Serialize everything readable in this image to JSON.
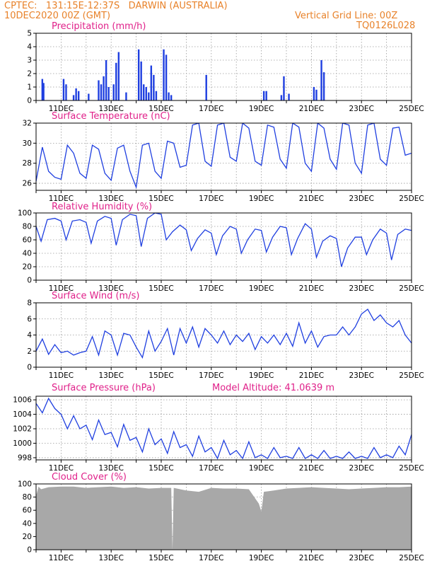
{
  "header": {
    "line1": "CPTEC:   131:15E-12:37S   DARWIN (AUSTRALIA)",
    "line2_left": "10DEC2020 00Z (GMT)",
    "line2_right": "Vertical Grid Line: 00Z",
    "line3_right": "TQ0126L028",
    "model_altitude": "Model Altitude: 41.0639 m"
  },
  "x_tick_labels": [
    "11DEC",
    "13DEC",
    "15DEC",
    "17DEC",
    "19DEC",
    "21DEC",
    "23DEC",
    "25DEC"
  ],
  "colors": {
    "line": "#1f3fe0",
    "bar": "#1f3fe0",
    "cloud": "#a8a8a8",
    "title": "#e0218a",
    "header": "#e8822a"
  },
  "chart_data": [
    {
      "type": "bar",
      "title": "Precipitation (mm/h)",
      "x_unit": "days since 10DEC2020 00Z",
      "ylim": [
        0,
        5
      ],
      "yticks": [
        0,
        1,
        2,
        3,
        4,
        5
      ],
      "grid": true,
      "x": [
        0.25,
        0.3,
        1.1,
        1.2,
        1.5,
        1.6,
        1.7,
        2.1,
        2.5,
        2.6,
        2.7,
        2.8,
        2.9,
        3.1,
        3.2,
        3.3,
        3.6,
        4.1,
        4.2,
        4.3,
        4.4,
        4.5,
        4.6,
        4.7,
        4.8,
        5.1,
        5.2,
        5.3,
        5.4,
        6.8,
        9.1,
        9.2,
        9.8,
        9.9,
        10.1,
        11.1,
        11.2,
        11.4,
        11.5
      ],
      "values": [
        1.6,
        1.3,
        1.6,
        1.2,
        0.4,
        0.9,
        0.7,
        0.5,
        1.5,
        1.2,
        1.8,
        3.0,
        1.0,
        1.2,
        2.8,
        3.6,
        0.6,
        3.8,
        2.9,
        1.2,
        1.0,
        0.6,
        2.6,
        1.9,
        0.7,
        3.8,
        3.4,
        0.6,
        0.4,
        1.9,
        0.7,
        0.7,
        0.4,
        1.8,
        0.5,
        1.0,
        0.8,
        3.0,
        2.1
      ]
    },
    {
      "type": "line",
      "title": "Surface Temperature (nC)",
      "ylim": [
        25.3,
        32
      ],
      "yticks": [
        26,
        28,
        30,
        32
      ],
      "grid": true,
      "x": [
        0,
        0.25,
        0.5,
        0.75,
        1,
        1.25,
        1.5,
        1.75,
        2,
        2.25,
        2.5,
        2.75,
        3,
        3.25,
        3.5,
        3.75,
        4,
        4.25,
        4.5,
        4.75,
        5,
        5.25,
        5.5,
        5.75,
        6,
        6.25,
        6.5,
        6.75,
        7,
        7.25,
        7.5,
        7.75,
        8,
        8.25,
        8.5,
        8.75,
        9,
        9.25,
        9.5,
        9.75,
        10,
        10.25,
        10.5,
        10.75,
        11,
        11.25,
        11.5,
        11.75,
        12,
        12.25,
        12.5,
        12.75,
        13,
        13.25,
        13.5,
        13.75,
        14,
        14.25,
        14.5,
        14.75,
        15
      ],
      "values": [
        26.2,
        29.6,
        27.2,
        26.6,
        26.4,
        29.8,
        29.0,
        27.0,
        26.5,
        29.8,
        29.4,
        27.0,
        26.3,
        29.5,
        29.8,
        27.2,
        25.6,
        29.8,
        30.0,
        27.2,
        26.5,
        30.2,
        30.0,
        27.6,
        27.8,
        31.8,
        32.0,
        28.2,
        27.7,
        31.8,
        32.0,
        28.6,
        28.2,
        32.0,
        31.5,
        28.2,
        27.8,
        31.8,
        31.6,
        28.4,
        27.5,
        32.0,
        31.6,
        28.0,
        27.2,
        32.0,
        31.5,
        28.4,
        27.4,
        32.0,
        31.8,
        28.0,
        27.0,
        31.8,
        32.0,
        28.4,
        27.8,
        31.5,
        31.6,
        28.8,
        29.0
      ]
    },
    {
      "type": "line",
      "title": "Relative Humidity (%)",
      "ylim": [
        0,
        100
      ],
      "yticks": [
        0,
        20,
        40,
        60,
        80,
        100
      ],
      "grid": true,
      "x": [
        0,
        0.2,
        0.45,
        0.75,
        1,
        1.2,
        1.45,
        1.75,
        2,
        2.2,
        2.45,
        2.75,
        3,
        3.2,
        3.45,
        3.75,
        4,
        4.2,
        4.45,
        4.75,
        5,
        5.2,
        5.45,
        5.75,
        6,
        6.2,
        6.45,
        6.75,
        7,
        7.2,
        7.45,
        7.75,
        8,
        8.2,
        8.45,
        8.75,
        9,
        9.2,
        9.45,
        9.75,
        10,
        10.2,
        10.45,
        10.75,
        11,
        11.2,
        11.45,
        11.75,
        12,
        12.2,
        12.45,
        12.75,
        13,
        13.2,
        13.45,
        13.75,
        14,
        14.2,
        14.45,
        14.75,
        15
      ],
      "values": [
        80,
        58,
        90,
        92,
        88,
        60,
        88,
        90,
        86,
        55,
        88,
        95,
        92,
        52,
        90,
        98,
        96,
        50,
        92,
        100,
        98,
        60,
        72,
        82,
        75,
        44,
        62,
        75,
        70,
        38,
        66,
        80,
        76,
        40,
        60,
        76,
        74,
        42,
        64,
        80,
        78,
        38,
        62,
        84,
        76,
        34,
        58,
        66,
        62,
        20,
        48,
        64,
        64,
        38,
        60,
        76,
        70,
        30,
        68,
        76,
        74
      ]
    },
    {
      "type": "line",
      "title": "Surface Wind (m/s)",
      "ylim": [
        0,
        8
      ],
      "yticks": [
        0,
        2,
        4,
        6,
        8
      ],
      "grid": true,
      "x": [
        0,
        0.25,
        0.5,
        0.75,
        1,
        1.25,
        1.5,
        1.75,
        2,
        2.25,
        2.5,
        2.75,
        3,
        3.25,
        3.5,
        3.75,
        4,
        4.25,
        4.5,
        4.75,
        5,
        5.25,
        5.5,
        5.75,
        6,
        6.25,
        6.5,
        6.75,
        7,
        7.25,
        7.5,
        7.75,
        8,
        8.25,
        8.5,
        8.75,
        9,
        9.25,
        9.5,
        9.75,
        10,
        10.25,
        10.5,
        10.75,
        11,
        11.25,
        11.5,
        11.75,
        12,
        12.25,
        12.5,
        12.75,
        13,
        13.25,
        13.5,
        13.75,
        14,
        14.25,
        14.5,
        14.75,
        15
      ],
      "values": [
        2.0,
        3.5,
        1.6,
        2.8,
        1.8,
        2.0,
        1.5,
        1.8,
        2.0,
        3.8,
        1.5,
        4.5,
        4.0,
        1.5,
        4.2,
        4.0,
        2.5,
        1.2,
        4.5,
        2.0,
        3.2,
        4.8,
        1.5,
        4.8,
        3.0,
        5.0,
        2.5,
        4.8,
        4.0,
        3.0,
        4.5,
        2.8,
        4.0,
        3.2,
        4.2,
        2.2,
        3.8,
        3.0,
        4.0,
        2.8,
        4.2,
        2.6,
        5.5,
        3.0,
        4.5,
        2.5,
        3.8,
        4.0,
        4.0,
        5.0,
        4.0,
        5.0,
        6.6,
        7.2,
        5.8,
        6.5,
        5.5,
        5.0,
        5.8,
        4.0,
        3.0
      ]
    },
    {
      "type": "line",
      "title": "Surface Pressure (hPa)",
      "ylim": [
        997.7,
        1006.5
      ],
      "yticks": [
        998,
        1000,
        1002,
        1004,
        1006
      ],
      "grid": true,
      "x": [
        0,
        0.25,
        0.5,
        0.75,
        1,
        1.25,
        1.5,
        1.75,
        2,
        2.25,
        2.5,
        2.75,
        3,
        3.25,
        3.5,
        3.75,
        4,
        4.25,
        4.5,
        4.75,
        5,
        5.25,
        5.5,
        5.75,
        6,
        6.25,
        6.5,
        6.75,
        7,
        7.25,
        7.5,
        7.75,
        8,
        8.25,
        8.5,
        8.75,
        9,
        9.25,
        9.5,
        9.75,
        10,
        10.25,
        10.5,
        10.75,
        11,
        11.25,
        11.5,
        11.75,
        12,
        12.25,
        12.5,
        12.75,
        13,
        13.25,
        13.5,
        13.75,
        14,
        14.25,
        14.5,
        14.75,
        15
      ],
      "values": [
        1005.5,
        1004.2,
        1006.2,
        1004.8,
        1004.0,
        1002.0,
        1003.8,
        1002.0,
        1002.5,
        1000.5,
        1003.2,
        1001.2,
        1001.5,
        999.5,
        1002.6,
        1000.4,
        1000.8,
        998.8,
        1002.0,
        999.8,
        1000.6,
        998.6,
        1001.6,
        999.4,
        999.8,
        998.2,
        1001.0,
        998.8,
        999.4,
        997.9,
        1000.4,
        998.4,
        999.0,
        997.9,
        1000.2,
        998.0,
        998.4,
        997.9,
        999.4,
        998.0,
        998.2,
        997.9,
        999.4,
        997.9,
        998.4,
        997.9,
        999.0,
        997.9,
        998.2,
        997.9,
        998.8,
        997.9,
        998.2,
        997.9,
        999.4,
        998.0,
        998.4,
        998.0,
        999.6,
        998.4,
        1001.2
      ]
    },
    {
      "type": "area",
      "title": "Cloud Cover (%)",
      "ylim": [
        0,
        100
      ],
      "yticks": [
        0,
        20,
        40,
        60,
        80,
        100
      ],
      "grid": true,
      "x": [
        0,
        0.1,
        0.2,
        0.5,
        1,
        1.5,
        2,
        2.5,
        3,
        3.5,
        4,
        4.5,
        5,
        5.4,
        5.45,
        5.5,
        6,
        6.5,
        7,
        7.5,
        8,
        8.5,
        8.9,
        9.0,
        9.1,
        9.5,
        10,
        10.5,
        11,
        11.5,
        12,
        12.5,
        13,
        13.5,
        14,
        14.5,
        15
      ],
      "values": [
        82,
        96,
        92,
        95,
        96,
        96,
        94,
        95,
        96,
        94,
        95,
        93,
        94,
        94,
        0,
        94,
        90,
        88,
        94,
        93,
        93,
        92,
        70,
        58,
        88,
        90,
        93,
        94,
        95,
        94,
        93,
        92,
        93,
        94,
        95,
        95,
        96
      ]
    }
  ]
}
